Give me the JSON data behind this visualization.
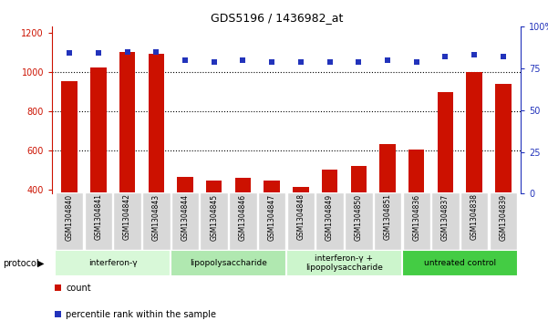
{
  "title": "GDS5196 / 1436982_at",
  "samples": [
    "GSM1304840",
    "GSM1304841",
    "GSM1304842",
    "GSM1304843",
    "GSM1304844",
    "GSM1304845",
    "GSM1304846",
    "GSM1304847",
    "GSM1304848",
    "GSM1304849",
    "GSM1304850",
    "GSM1304851",
    "GSM1304836",
    "GSM1304837",
    "GSM1304838",
    "GSM1304839"
  ],
  "counts": [
    950,
    1020,
    1100,
    1090,
    465,
    445,
    460,
    445,
    415,
    500,
    520,
    630,
    605,
    895,
    1000,
    940
  ],
  "percentiles": [
    84,
    84,
    85,
    85,
    80,
    79,
    80,
    79,
    79,
    79,
    79,
    80,
    79,
    82,
    83,
    82
  ],
  "groups": [
    {
      "label": "interferon-γ",
      "start": 0,
      "end": 4,
      "color": "#d8f8d8"
    },
    {
      "label": "lipopolysaccharide",
      "start": 4,
      "end": 8,
      "color": "#b0e8b0"
    },
    {
      "label": "interferon-γ +\nlipopolysaccharide",
      "start": 8,
      "end": 12,
      "color": "#ccf5cc"
    },
    {
      "label": "untreated control",
      "start": 12,
      "end": 16,
      "color": "#44cc44"
    }
  ],
  "ylim_left": [
    380,
    1230
  ],
  "ylim_right": [
    0,
    100
  ],
  "yticks_left": [
    400,
    600,
    800,
    1000,
    1200
  ],
  "yticks_right": [
    0,
    25,
    50,
    75,
    100
  ],
  "bar_color": "#cc1100",
  "dot_color": "#2233bb",
  "grid_yticks": [
    600,
    800,
    1000
  ],
  "bg_color": "#ffffff",
  "label_bg": "#d8d8d8",
  "protocol_label": "protocol",
  "legend_count": "count",
  "legend_percentile": "percentile rank within the sample"
}
